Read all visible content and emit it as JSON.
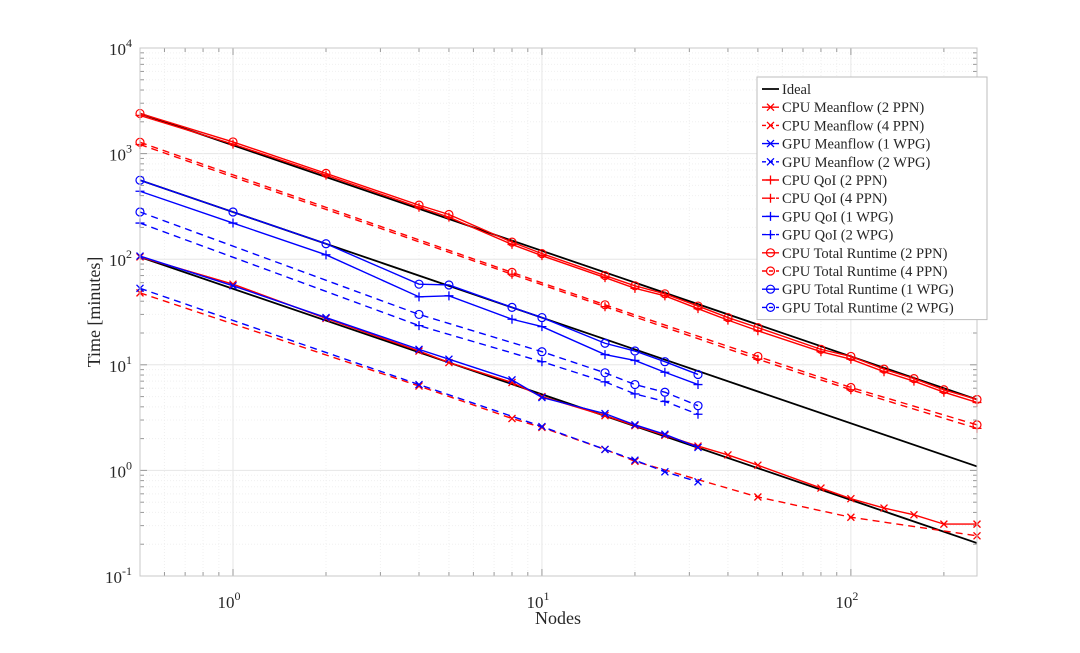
{
  "chart_data": {
    "type": "line",
    "title": "",
    "xlabel": "Nodes",
    "ylabel": "Time [minutes]",
    "xscale": "log",
    "yscale": "log",
    "xlim": [
      0.5,
      256
    ],
    "ylim": [
      0.1,
      10000
    ],
    "grid": true,
    "legend_position": "top-right",
    "x_ticks": [
      {
        "base": "10",
        "exp": "0",
        "value": 1
      },
      {
        "base": "10",
        "exp": "1",
        "value": 10
      },
      {
        "base": "10",
        "exp": "2",
        "value": 100
      }
    ],
    "y_ticks": [
      {
        "base": "10",
        "exp": "-1",
        "value": 0.1
      },
      {
        "base": "10",
        "exp": "0",
        "value": 1
      },
      {
        "base": "10",
        "exp": "1",
        "value": 10
      },
      {
        "base": "10",
        "exp": "2",
        "value": 100
      },
      {
        "base": "10",
        "exp": "3",
        "value": 1000
      },
      {
        "base": "10",
        "exp": "4",
        "value": 10000
      }
    ],
    "colors": {
      "ideal": "#000000",
      "cpu": "#ff0000",
      "gpu": "#0000ff"
    },
    "ideal": {
      "name": "Ideal",
      "lines": [
        {
          "x": [
            0.5,
            256
          ],
          "y": [
            2400,
            4.69
          ]
        },
        {
          "x": [
            0.5,
            256
          ],
          "y": [
            560,
            1.09
          ]
        },
        {
          "x": [
            0.5,
            256
          ],
          "y": [
            105,
            0.205
          ]
        }
      ]
    },
    "series": [
      {
        "name": "CPU Meanflow (2 PPN)",
        "color": "#ff0000",
        "dash": false,
        "marker": "x",
        "x": [
          0.5,
          1,
          2,
          4,
          5,
          8,
          10,
          16,
          20,
          25,
          32,
          40,
          50,
          80,
          100,
          128,
          160,
          200,
          256
        ],
        "y": [
          105,
          58,
          27.5,
          13.5,
          10.5,
          6.8,
          5.0,
          3.3,
          2.65,
          2.15,
          1.7,
          1.4,
          1.12,
          0.68,
          0.54,
          0.44,
          0.38,
          0.31,
          0.31
        ]
      },
      {
        "name": "CPU Meanflow (4 PPN)",
        "color": "#ff0000",
        "dash": true,
        "marker": "x",
        "x": [
          0.5,
          4,
          8,
          10,
          16,
          20,
          50,
          100,
          256
        ],
        "y": [
          48,
          6.3,
          3.1,
          2.55,
          1.58,
          1.22,
          0.56,
          0.36,
          0.24
        ]
      },
      {
        "name": "GPU Meanflow (1 WPG)",
        "color": "#0000ff",
        "dash": false,
        "marker": "x",
        "x": [
          0.5,
          1,
          2,
          4,
          5,
          8,
          10,
          16,
          20,
          25,
          32
        ],
        "y": [
          107,
          56,
          28,
          14,
          11.3,
          7.2,
          4.9,
          3.45,
          2.7,
          2.2,
          1.65
        ]
      },
      {
        "name": "GPU Meanflow (2 WPG)",
        "color": "#0000ff",
        "dash": true,
        "marker": "x",
        "x": [
          0.5,
          4,
          10,
          16,
          20,
          25,
          32
        ],
        "y": [
          53,
          6.5,
          2.6,
          1.58,
          1.25,
          0.97,
          0.78
        ]
      },
      {
        "name": "CPU QoI (2 PPN)",
        "color": "#ff0000",
        "dash": false,
        "marker": "+",
        "x": [
          0.5,
          1,
          2,
          4,
          5,
          8,
          10,
          16,
          20,
          25,
          32,
          40,
          50,
          80,
          100,
          128,
          160,
          200,
          256
        ],
        "y": [
          2300,
          1230,
          625,
          310,
          250,
          138,
          108,
          67,
          53,
          45,
          34,
          26.5,
          21,
          13.3,
          11.3,
          8.6,
          7.0,
          5.5,
          4.4
        ]
      },
      {
        "name": "CPU QoI (4 PPN)",
        "color": "#ff0000",
        "dash": true,
        "marker": "+",
        "x": [
          0.5,
          8,
          16,
          50,
          100,
          256
        ],
        "y": [
          1220,
          72,
          35.5,
          11.3,
          5.8,
          2.5
        ]
      },
      {
        "name": "GPU QoI (1 WPG)",
        "color": "#0000ff",
        "dash": false,
        "marker": "+",
        "x": [
          0.5,
          1,
          2,
          4,
          5,
          8,
          10,
          16,
          20,
          25,
          32
        ],
        "y": [
          440,
          220,
          110,
          44,
          45,
          27,
          23,
          12.5,
          11,
          8.5,
          6.5
        ]
      },
      {
        "name": "GPU QoI (2 WPG)",
        "color": "#0000ff",
        "dash": true,
        "marker": "+",
        "x": [
          0.5,
          4,
          10,
          16,
          20,
          25,
          32
        ],
        "y": [
          220,
          23.5,
          10.7,
          6.9,
          5.3,
          4.5,
          3.4
        ]
      },
      {
        "name": "CPU Total Runtime (2 PPN)",
        "color": "#ff0000",
        "dash": false,
        "marker": "o",
        "x": [
          0.5,
          1,
          2,
          4,
          5,
          8,
          10,
          16,
          20,
          25,
          32,
          40,
          50,
          80,
          100,
          128,
          160,
          200,
          256
        ],
        "y": [
          2400,
          1290,
          650,
          325,
          265,
          145,
          113,
          70,
          56,
          47,
          36,
          28,
          22.5,
          14,
          12,
          9.1,
          7.4,
          5.8,
          4.7
        ]
      },
      {
        "name": "CPU Total Runtime (4 PPN)",
        "color": "#ff0000",
        "dash": true,
        "marker": "o",
        "x": [
          0.5,
          8,
          16,
          50,
          100,
          256
        ],
        "y": [
          1280,
          75,
          37,
          12,
          6.1,
          2.7
        ]
      },
      {
        "name": "GPU Total Runtime (1 WPG)",
        "color": "#0000ff",
        "dash": false,
        "marker": "o",
        "x": [
          0.5,
          1,
          2,
          4,
          5,
          8,
          10,
          16,
          20,
          25,
          32
        ],
        "y": [
          560,
          280,
          140,
          58,
          57,
          35,
          28,
          16,
          13.5,
          10.7,
          8.1
        ]
      },
      {
        "name": "GPU Total Runtime (2 WPG)",
        "color": "#0000ff",
        "dash": true,
        "marker": "o",
        "x": [
          0.5,
          4,
          10,
          16,
          20,
          25,
          32
        ],
        "y": [
          280,
          30,
          13.3,
          8.4,
          6.5,
          5.5,
          4.1
        ]
      }
    ]
  }
}
